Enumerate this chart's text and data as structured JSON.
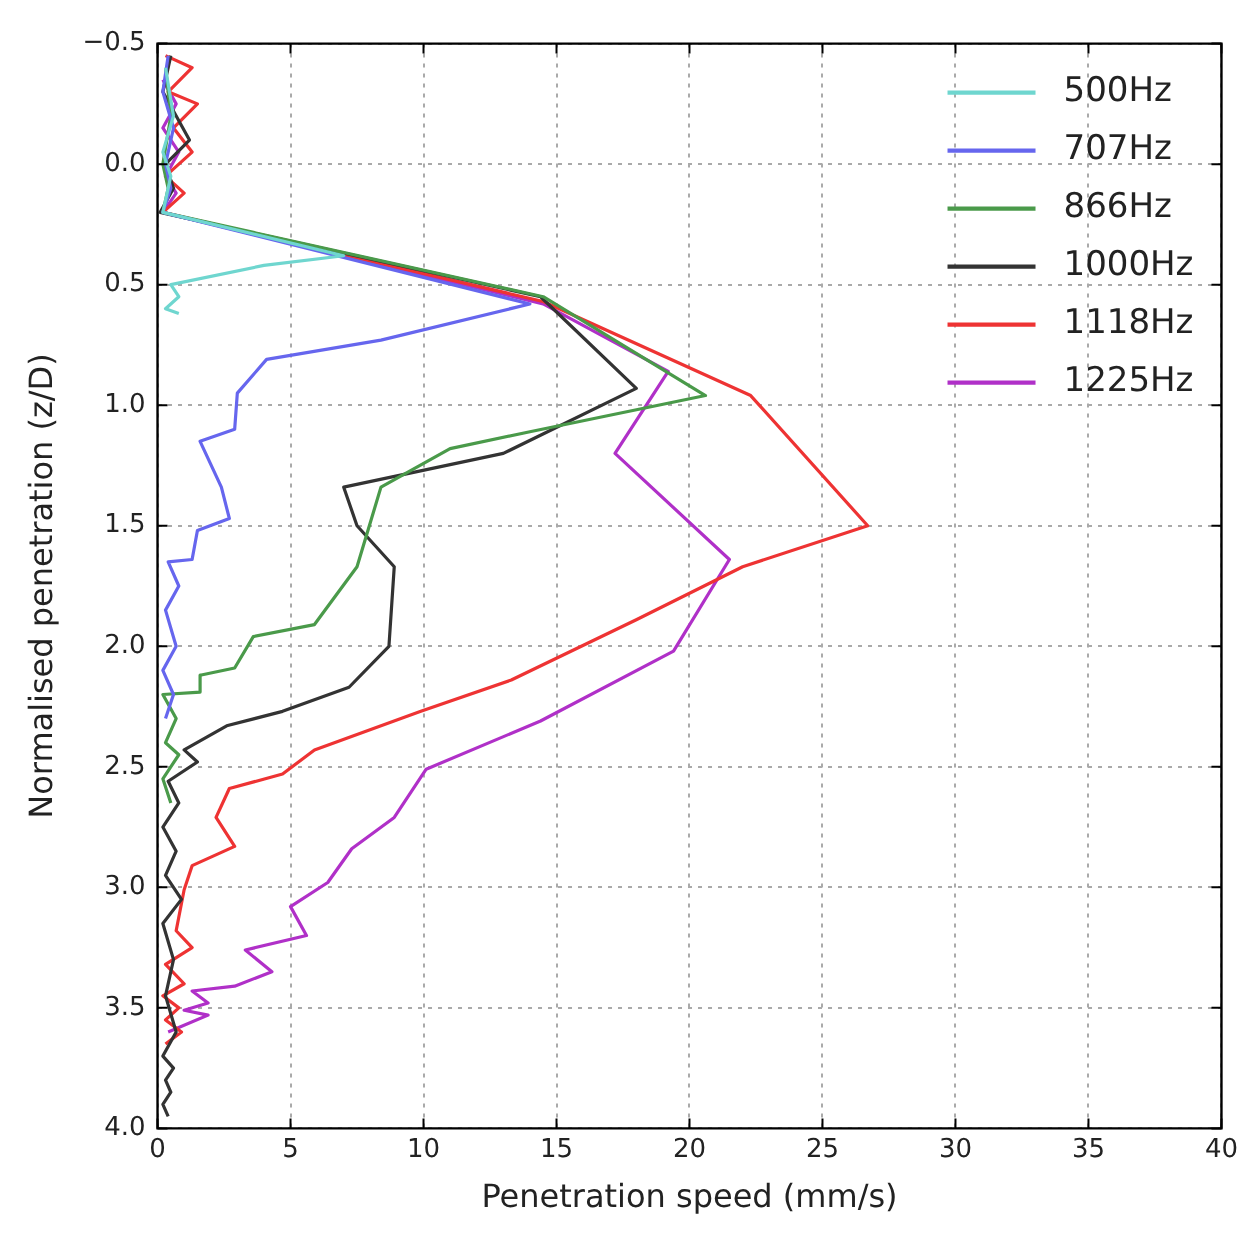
{
  "chart_data": {
    "type": "line",
    "xlabel": "Penetration speed (mm/s)",
    "ylabel": "Normalised penetration (z/D)",
    "xlim": [
      0,
      40
    ],
    "xticks": [
      0,
      5,
      10,
      15,
      20,
      25,
      30,
      35,
      40
    ],
    "ylim": [
      4.0,
      -0.5
    ],
    "yticks": [
      {
        "value": -0.5,
        "label": "−0.5"
      },
      {
        "value": 0,
        "label": "0.0"
      },
      {
        "value": 0.5,
        "label": "0.5"
      },
      {
        "value": 1,
        "label": "1.0"
      },
      {
        "value": 1.5,
        "label": "1.5"
      },
      {
        "value": 2,
        "label": "2.0"
      },
      {
        "value": 2.5,
        "label": "2.5"
      },
      {
        "value": 3,
        "label": "3.0"
      },
      {
        "value": 3.5,
        "label": "3.5"
      },
      {
        "value": 4,
        "label": "4.0"
      }
    ],
    "grid": true,
    "legend": "top right",
    "marker": "none",
    "line_style": "solid",
    "series": [
      {
        "name": "500Hz",
        "color": "#6fd6cf",
        "x": [
          0.3,
          0.6,
          0.2,
          0.5,
          0.3,
          0.2,
          7.0,
          4.0,
          0.5,
          0.8,
          0.3,
          0.8
        ],
        "values": [
          -0.4,
          -0.2,
          -0.05,
          0.05,
          0.15,
          0.2,
          0.38,
          0.42,
          0.5,
          0.55,
          0.6,
          0.62
        ]
      },
      {
        "name": "707Hz",
        "color": "#6666ee",
        "x": [
          0.4,
          0.2,
          0.6,
          0.3,
          0.5,
          0.2,
          14.0,
          8.4,
          4.1,
          3.0,
          2.9,
          1.6,
          2.4,
          2.7,
          1.5,
          1.3,
          0.4,
          0.8,
          0.3,
          0.7,
          0.2,
          0.6,
          0.3
        ],
        "values": [
          -0.45,
          -0.3,
          -0.15,
          0.0,
          0.1,
          0.2,
          0.58,
          0.73,
          0.81,
          0.95,
          1.1,
          1.15,
          1.34,
          1.47,
          1.52,
          1.64,
          1.65,
          1.75,
          1.85,
          2.0,
          2.1,
          2.2,
          2.3
        ]
      },
      {
        "name": "866Hz",
        "color": "#4a9a4a",
        "x": [
          0.3,
          0.5,
          0.2,
          0.4,
          0.2,
          14.5,
          20.6,
          14.0,
          11.0,
          8.4,
          7.5,
          5.9,
          3.6,
          2.9,
          1.6,
          1.6,
          0.2,
          0.7,
          0.3,
          0.8,
          0.2,
          0.5
        ],
        "values": [
          -0.4,
          -0.2,
          0.0,
          0.1,
          0.2,
          0.55,
          0.96,
          1.11,
          1.18,
          1.34,
          1.67,
          1.91,
          1.96,
          2.09,
          2.12,
          2.19,
          2.2,
          2.3,
          2.4,
          2.45,
          2.55,
          2.65
        ]
      },
      {
        "name": "1000Hz",
        "color": "#333333",
        "x": [
          0.5,
          0.2,
          1.2,
          0.3,
          0.6,
          0.1,
          14.4,
          18.0,
          13.0,
          7.0,
          7.5,
          8.9,
          8.7,
          7.2,
          4.7,
          2.6,
          1.0,
          1.5,
          0.4,
          0.8,
          0.2,
          0.7,
          0.3,
          0.9,
          0.2,
          0.6,
          0.3,
          0.7,
          0.2,
          0.6,
          0.3,
          0.5,
          0.2,
          0.4
        ],
        "values": [
          -0.45,
          -0.3,
          -0.1,
          0.0,
          0.1,
          0.2,
          0.55,
          0.93,
          1.2,
          1.34,
          1.5,
          1.67,
          2.0,
          2.17,
          2.27,
          2.33,
          2.43,
          2.48,
          2.56,
          2.65,
          2.75,
          2.85,
          2.95,
          3.05,
          3.15,
          3.3,
          3.45,
          3.6,
          3.7,
          3.75,
          3.8,
          3.85,
          3.9,
          3.95
        ]
      },
      {
        "name": "1118Hz",
        "color": "#ee3333",
        "x": [
          0.3,
          1.3,
          0.4,
          1.5,
          0.6,
          1.3,
          0.3,
          1.0,
          0.2,
          14.5,
          22.3,
          26.7,
          22.0,
          18.0,
          13.3,
          9.9,
          5.9,
          4.7,
          2.7,
          2.2,
          2.9,
          1.3,
          1.0,
          0.7,
          1.3,
          0.3,
          1.0,
          0.2,
          0.8,
          0.3,
          0.9,
          0.3
        ],
        "values": [
          -0.45,
          -0.4,
          -0.3,
          -0.25,
          -0.15,
          -0.05,
          0.05,
          0.12,
          0.2,
          0.57,
          0.96,
          1.5,
          1.67,
          1.89,
          2.14,
          2.27,
          2.43,
          2.53,
          2.59,
          2.71,
          2.83,
          2.91,
          3.01,
          3.18,
          3.25,
          3.32,
          3.4,
          3.45,
          3.5,
          3.55,
          3.6,
          3.65
        ]
      },
      {
        "name": "1225Hz",
        "color": "#b030c8",
        "x": [
          0.2,
          0.7,
          0.2,
          0.8,
          0.3,
          0.7,
          0.2,
          14.5,
          19.2,
          17.2,
          21.5,
          19.4,
          14.4,
          10.1,
          8.9,
          7.3,
          6.4,
          5.0,
          5.6,
          3.3,
          4.3,
          2.9,
          1.3,
          1.9,
          1.0,
          1.9,
          0.4
        ],
        "values": [
          -0.35,
          -0.25,
          -0.15,
          -0.05,
          0.05,
          0.12,
          0.2,
          0.58,
          0.86,
          1.2,
          1.64,
          2.02,
          2.31,
          2.51,
          2.71,
          2.84,
          2.98,
          3.08,
          3.2,
          3.26,
          3.35,
          3.41,
          3.43,
          3.48,
          3.51,
          3.53,
          3.6
        ]
      }
    ]
  }
}
